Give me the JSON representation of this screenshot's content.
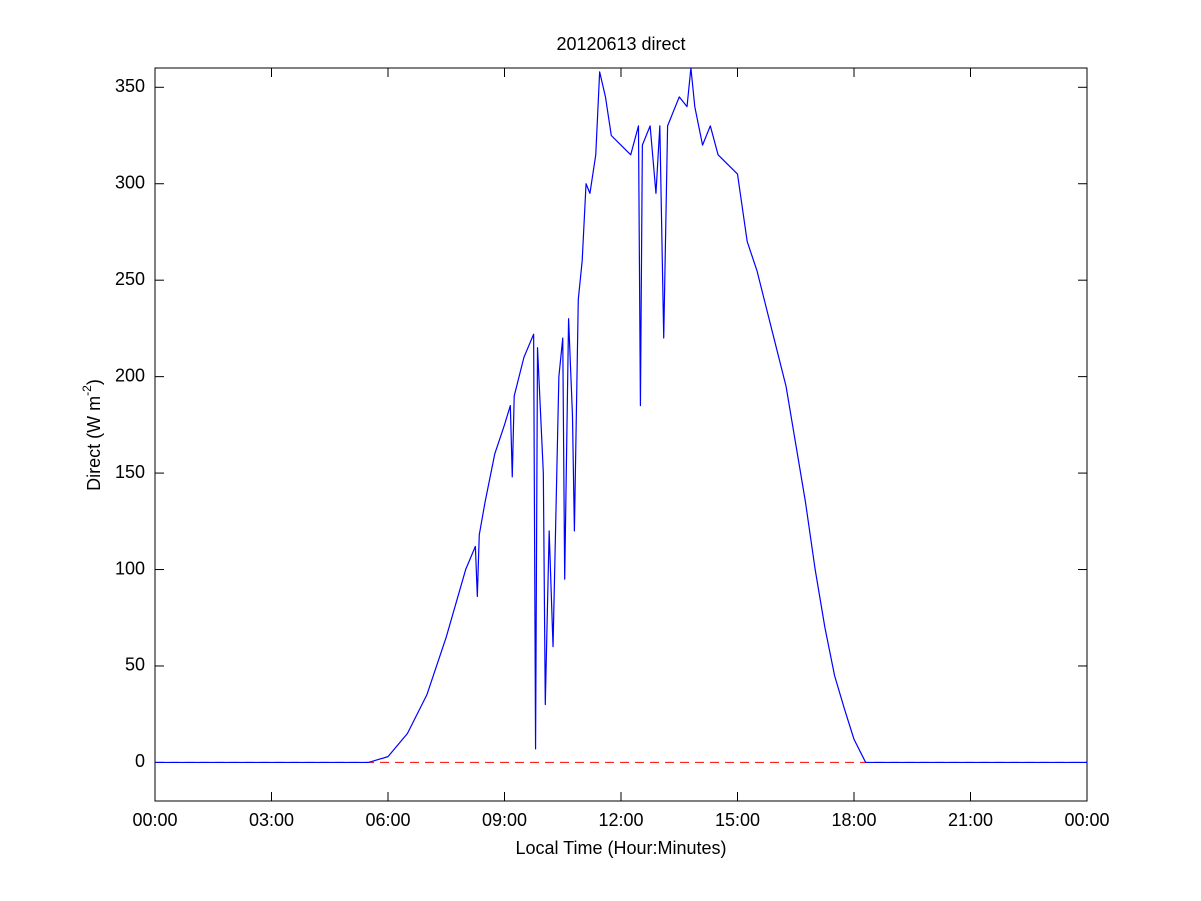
{
  "chart_data": {
    "type": "line",
    "title": "20120613 direct",
    "xlabel": "Local Time (Hour:Minutes)",
    "ylabel": {
      "text": "Direct (W m",
      "sup": "-2",
      "tail": ")"
    },
    "x": [
      0,
      5.5,
      6,
      6.5,
      7,
      7.5,
      8,
      8.25,
      8.3,
      8.35,
      8.5,
      8.75,
      9,
      9.15,
      9.2,
      9.25,
      9.5,
      9.75,
      9.8,
      9.85,
      10,
      10.05,
      10.15,
      10.25,
      10.4,
      10.5,
      10.55,
      10.65,
      10.75,
      10.8,
      10.9,
      11,
      11.1,
      11.2,
      11.35,
      11.45,
      11.6,
      11.75,
      12,
      12.25,
      12.45,
      12.5,
      12.55,
      12.75,
      12.9,
      13,
      13.1,
      13.2,
      13.5,
      13.7,
      13.8,
      13.9,
      14.1,
      14.3,
      14.5,
      14.75,
      15,
      15.25,
      15.5,
      15.75,
      16,
      16.25,
      16.5,
      16.75,
      17,
      17.25,
      17.5,
      17.75,
      18,
      18.3,
      24
    ],
    "series": [
      {
        "name": "direct",
        "color": "#0000ff",
        "values": [
          0,
          0,
          3,
          15,
          35,
          65,
          100,
          112,
          86,
          118,
          135,
          160,
          175,
          185,
          148,
          190,
          210,
          222,
          7,
          215,
          150,
          30,
          120,
          60,
          200,
          220,
          95,
          230,
          180,
          120,
          240,
          260,
          300,
          295,
          315,
          358,
          345,
          325,
          320,
          315,
          330,
          185,
          320,
          330,
          295,
          330,
          220,
          330,
          345,
          340,
          360,
          340,
          320,
          330,
          315,
          310,
          305,
          270,
          255,
          235,
          215,
          195,
          165,
          135,
          100,
          70,
          45,
          28,
          12,
          0,
          0
        ]
      }
    ],
    "hline": {
      "value": 0,
      "color": "#ff0000"
    },
    "xlim": [
      0,
      24
    ],
    "xticks": [
      {
        "value": 0,
        "label": "00:00"
      },
      {
        "value": 3,
        "label": "03:00"
      },
      {
        "value": 6,
        "label": "06:00"
      },
      {
        "value": 9,
        "label": "09:00"
      },
      {
        "value": 12,
        "label": "12:00"
      },
      {
        "value": 15,
        "label": "15:00"
      },
      {
        "value": 18,
        "label": "18:00"
      },
      {
        "value": 21,
        "label": "21:00"
      },
      {
        "value": 24,
        "label": "00:00"
      }
    ],
    "ylim": [
      -20,
      360
    ],
    "yticks": [
      0,
      50,
      100,
      150,
      200,
      250,
      300,
      350
    ],
    "grid": false
  }
}
